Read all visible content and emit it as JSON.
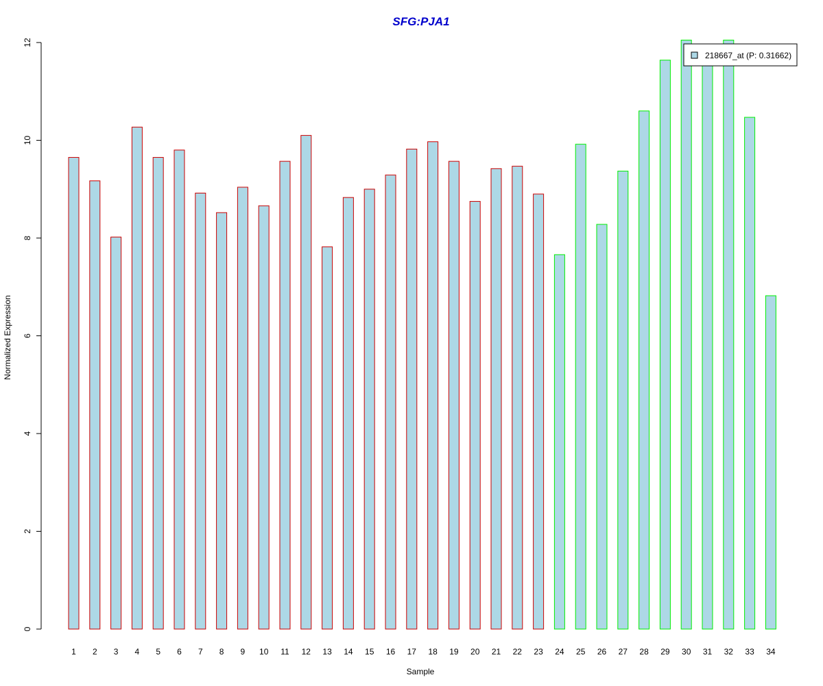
{
  "chart_data": {
    "type": "bar",
    "title": "SFG:PJA1",
    "xlabel": "Sample",
    "ylabel": "Normalized Expression",
    "categories": [
      "1",
      "2",
      "3",
      "4",
      "5",
      "6",
      "7",
      "8",
      "9",
      "10",
      "11",
      "12",
      "13",
      "14",
      "15",
      "16",
      "17",
      "18",
      "19",
      "20",
      "21",
      "22",
      "23",
      "24",
      "25",
      "26",
      "27",
      "28",
      "29",
      "30",
      "31",
      "32",
      "33",
      "34"
    ],
    "series": [
      {
        "name": "218667_at (P: 0.31662)",
        "values": [
          9.65,
          9.17,
          8.02,
          10.27,
          9.65,
          9.8,
          8.92,
          8.52,
          9.04,
          8.66,
          9.57,
          10.1,
          7.82,
          8.83,
          9.0,
          9.29,
          9.82,
          9.97,
          9.57,
          8.75,
          9.42,
          9.47,
          8.9,
          7.66,
          9.92,
          8.28,
          9.37,
          10.6,
          11.64,
          12.05,
          11.7,
          12.05,
          10.47,
          6.82
        ]
      }
    ],
    "ylim": [
      0,
      12
    ],
    "yticks": [
      0,
      2,
      4,
      6,
      8,
      10,
      12
    ],
    "grid": false,
    "legend_position": "top-right",
    "groups": [
      {
        "from": 1,
        "to": 23,
        "border_color": "#cc0000"
      },
      {
        "from": 24,
        "to": 34,
        "border_color": "#00ee00"
      }
    ],
    "colors": {
      "bar_fill": "#add8e6",
      "title": "#0000cc",
      "axis": "#000000"
    }
  }
}
